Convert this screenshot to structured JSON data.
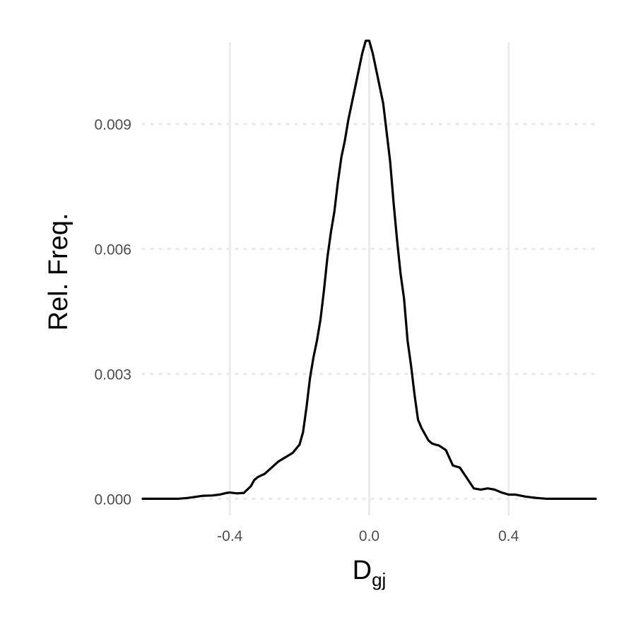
{
  "chart_data": {
    "type": "line",
    "title": "",
    "xlabel": {
      "main": "D",
      "subscript": "gj"
    },
    "ylabel": "Rel. Freq.",
    "xlim": [
      -0.65,
      0.65
    ],
    "ylim": [
      -0.0004,
      0.0113
    ],
    "x_ticks": [
      -0.4,
      0.0,
      0.4
    ],
    "x_tick_labels": [
      "-0.4",
      "0.0",
      "0.4"
    ],
    "y_ticks": [
      0.0,
      0.003,
      0.006,
      0.009
    ],
    "y_tick_labels": [
      "0.000",
      "0.003",
      "0.006",
      "0.009"
    ],
    "grid": {
      "x_major": "solid",
      "y_major": "dotted"
    },
    "colors": {
      "line": "#000000",
      "grid": "#ebebeb",
      "tick_text": "#4d4d4d"
    },
    "series": [
      {
        "x": [
          -0.65,
          -0.55,
          -0.52,
          -0.48,
          -0.45,
          -0.43,
          -0.41,
          -0.4,
          -0.38,
          -0.36,
          -0.34,
          -0.33,
          -0.32,
          -0.3,
          -0.28,
          -0.26,
          -0.24,
          -0.22,
          -0.2,
          -0.19,
          -0.18,
          -0.17,
          -0.16,
          -0.15,
          -0.14,
          -0.13,
          -0.12,
          -0.11,
          -0.1,
          -0.09,
          -0.08,
          -0.07,
          -0.06,
          -0.05,
          -0.04,
          -0.03,
          -0.02,
          -0.01,
          0.0,
          0.01,
          0.02,
          0.03,
          0.04,
          0.05,
          0.06,
          0.07,
          0.08,
          0.09,
          0.1,
          0.11,
          0.12,
          0.13,
          0.14,
          0.15,
          0.16,
          0.17,
          0.18,
          0.19,
          0.2,
          0.22,
          0.24,
          0.26,
          0.28,
          0.3,
          0.32,
          0.34,
          0.36,
          0.38,
          0.4,
          0.42,
          0.45,
          0.48,
          0.51,
          0.55,
          0.6,
          0.65
        ],
        "y": [
          0.0,
          0.0,
          2e-05,
          7e-05,
          8e-05,
          0.0001,
          0.00014,
          0.00015,
          0.00013,
          0.00014,
          0.0003,
          0.00045,
          0.00052,
          0.0006,
          0.00075,
          0.0009,
          0.001,
          0.0011,
          0.0013,
          0.0016,
          0.0022,
          0.0029,
          0.0034,
          0.0038,
          0.0043,
          0.005,
          0.0058,
          0.0064,
          0.0069,
          0.0076,
          0.0082,
          0.0086,
          0.0091,
          0.0095,
          0.0099,
          0.0103,
          0.0107,
          0.011,
          0.011,
          0.0107,
          0.0103,
          0.0099,
          0.0095,
          0.0088,
          0.0081,
          0.0071,
          0.0062,
          0.0054,
          0.0048,
          0.0038,
          0.0032,
          0.0025,
          0.0019,
          0.0017,
          0.00155,
          0.0014,
          0.00133,
          0.0013,
          0.00128,
          0.00117,
          0.0008,
          0.00075,
          0.0005,
          0.00025,
          0.00022,
          0.00025,
          0.00022,
          0.00015,
          0.0001,
          0.0001,
          5e-05,
          2e-05,
          0.0,
          0.0,
          0.0,
          0.0
        ]
      }
    ]
  }
}
